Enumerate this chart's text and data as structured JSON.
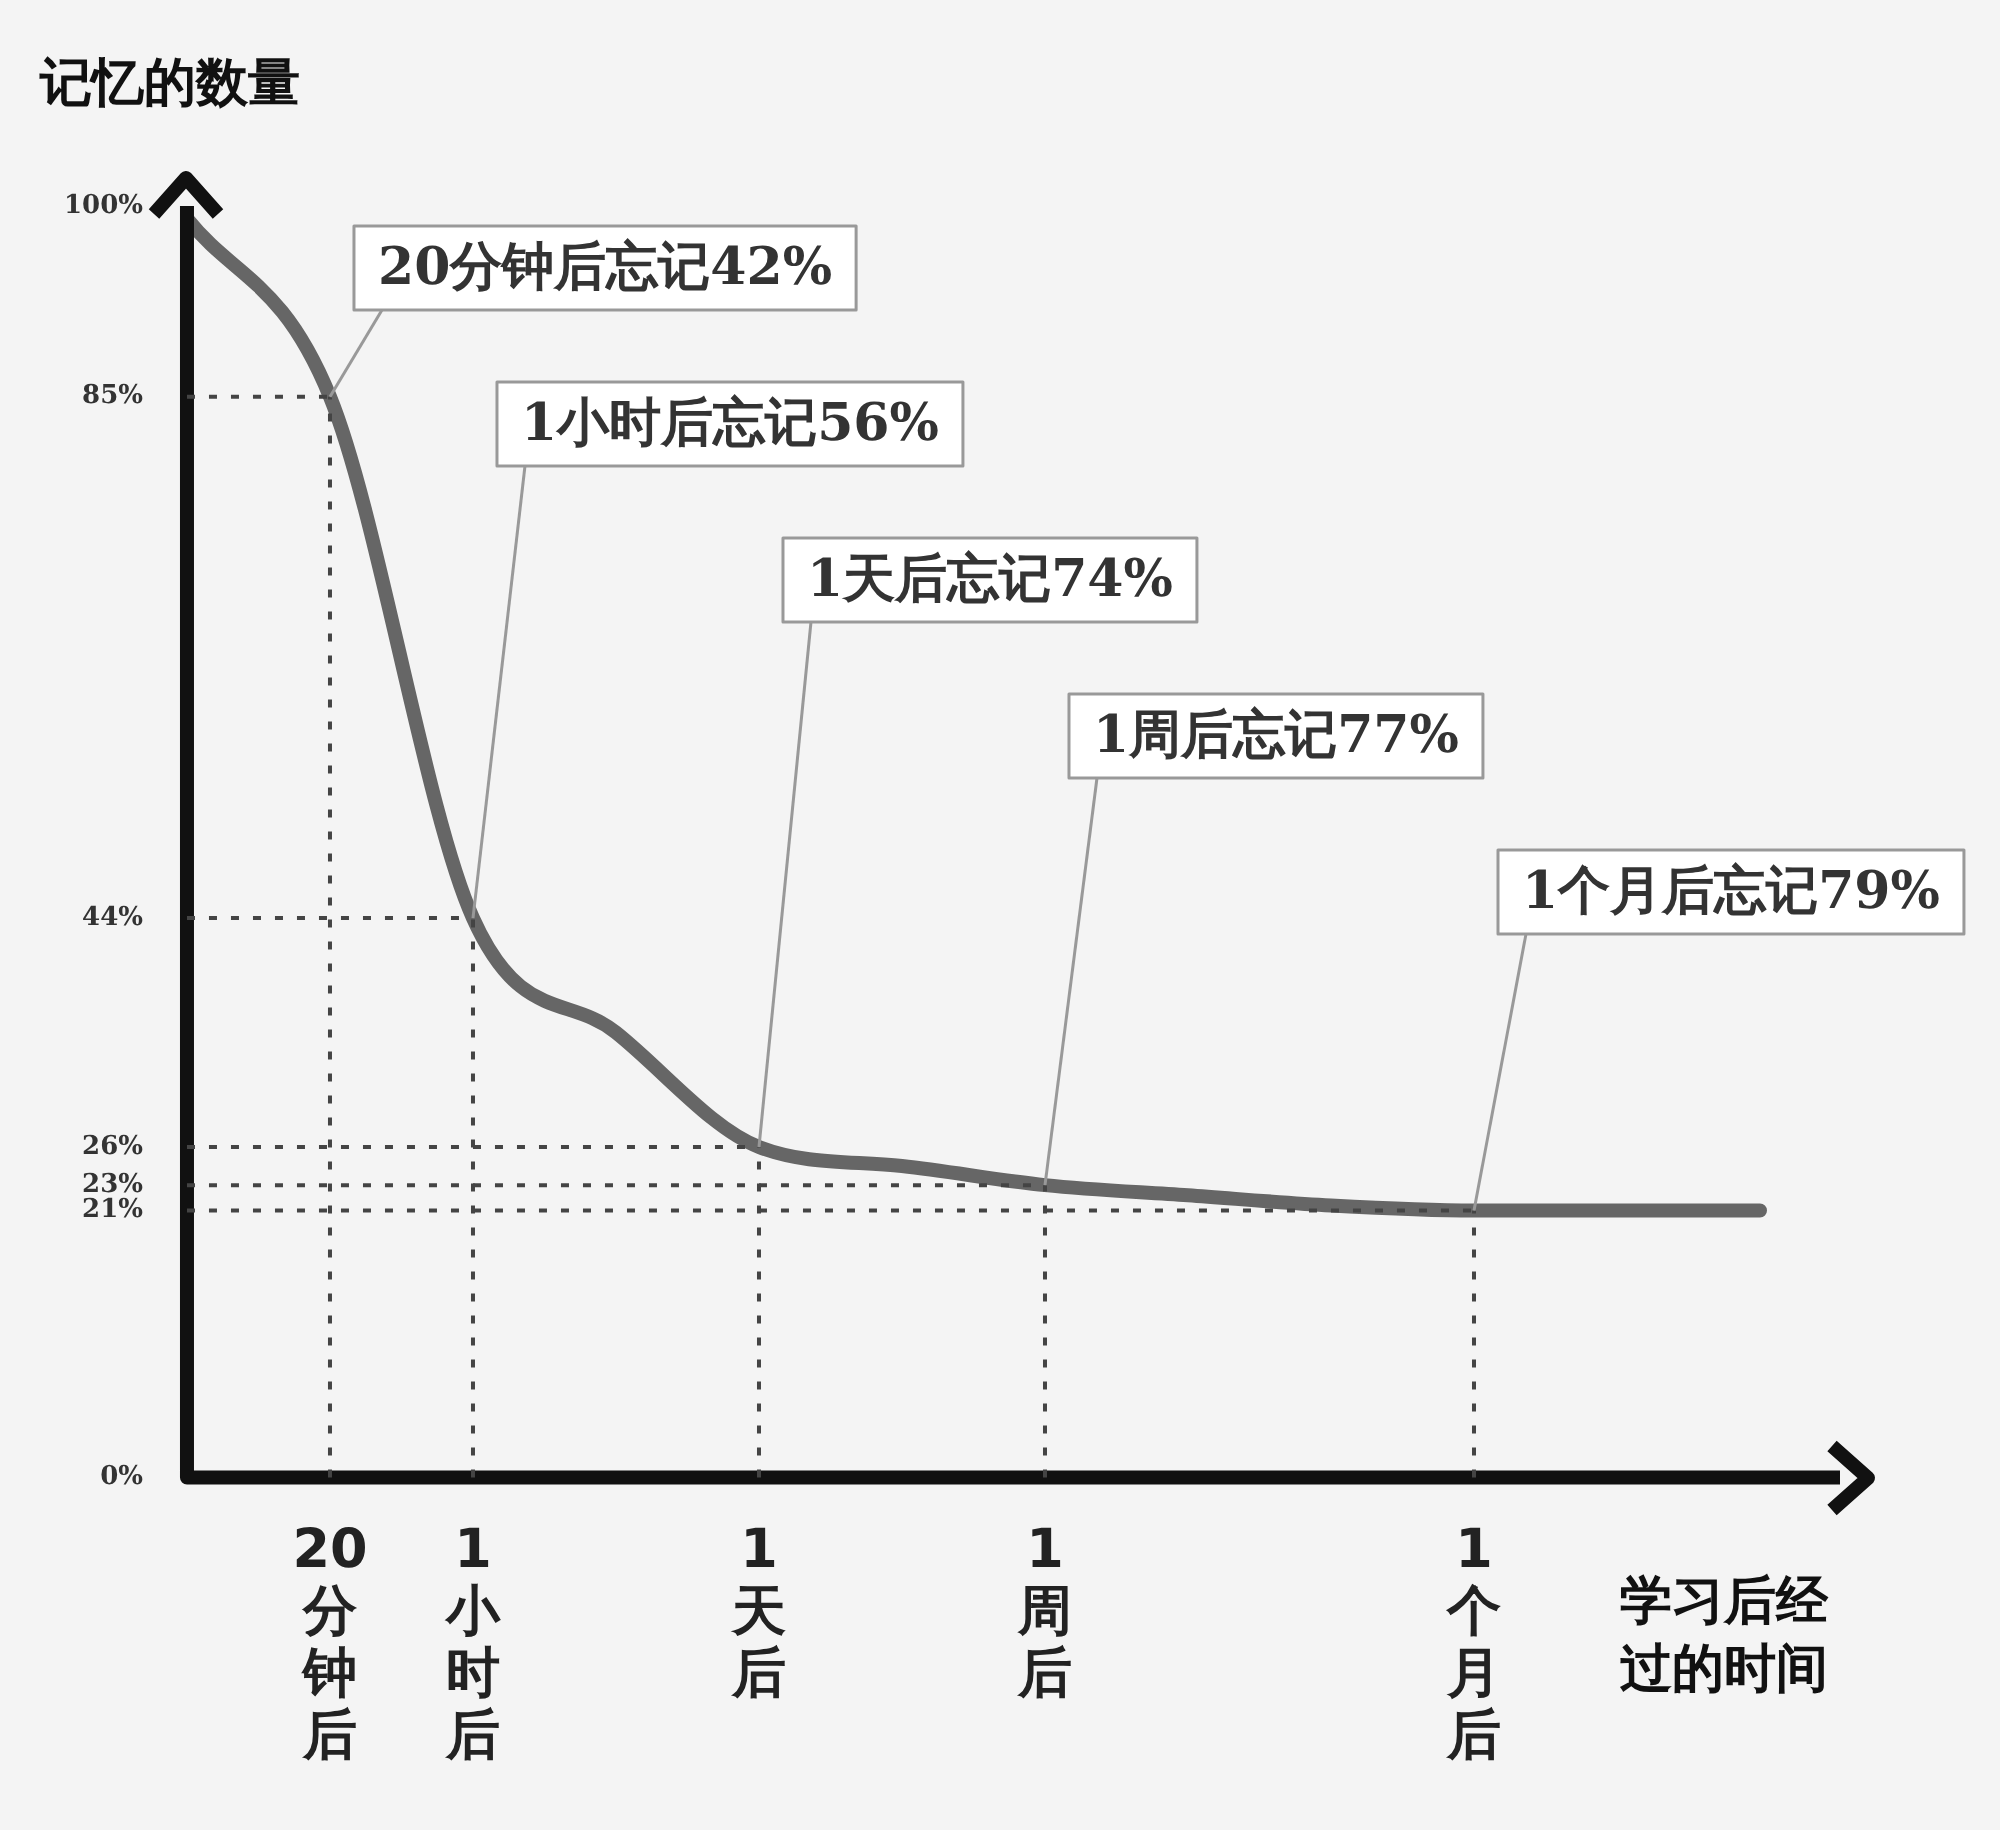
{
  "chart_data": {
    "type": "line",
    "ylabel": "记忆的数量",
    "xlabel": "学习后经过的时间",
    "categories": [
      null,
      "20分钟后",
      "1小时后",
      null,
      "1天后",
      null,
      "1周后",
      null,
      null,
      "1个月后",
      null,
      null
    ],
    "series": [
      {
        "color": "#666666",
        "values": [
          99,
          85,
          44,
          35,
          26,
          24.5,
          23,
          22.2,
          21.4,
          21,
          21,
          21
        ]
      }
    ],
    "ylim": [
      0,
      100
    ],
    "yticks": [
      {
        "value": 0,
        "label": "0%"
      },
      {
        "value": 21,
        "label": "21%"
      },
      {
        "value": 23,
        "label": "23%"
      },
      {
        "value": 26,
        "label": "26%"
      },
      {
        "value": 44,
        "label": "44%"
      },
      {
        "value": 85,
        "label": "85%"
      },
      {
        "value": 100,
        "label": "100%"
      }
    ],
    "annotations": [
      {
        "text": "20分钟后忘记42%",
        "x": "20分钟后",
        "y": 85
      },
      {
        "text": "1小时后忘记56%",
        "x": "1小时后",
        "y": 44
      },
      {
        "text": "1天后忘记74%",
        "x": "1天后",
        "y": 26
      },
      {
        "text": "1周后忘记77%",
        "x": "1周后",
        "y": 23
      },
      {
        "text": "1个月后忘记79%",
        "x": "1个月后",
        "y": 21
      }
    ],
    "ref_lines": [
      {
        "axis": "y",
        "value": 85,
        "line_style": "dotted"
      },
      {
        "axis": "y",
        "value": 44,
        "line_style": "dotted"
      },
      {
        "axis": "y",
        "value": 26,
        "line_style": "dotted"
      },
      {
        "axis": "y",
        "value": 23,
        "line_style": "dotted"
      },
      {
        "axis": "y",
        "value": 21,
        "line_style": "dotted"
      },
      {
        "axis": "x",
        "value": "20分钟后",
        "line_style": "dotted"
      },
      {
        "axis": "x",
        "value": "1小时后",
        "line_style": "dotted"
      },
      {
        "axis": "x",
        "value": "1天后",
        "line_style": "dotted"
      },
      {
        "axis": "x",
        "value": "1周后",
        "line_style": "dotted"
      },
      {
        "axis": "x",
        "value": "1个月后",
        "line_style": "dotted"
      }
    ],
    "marker": "none",
    "line_style": "solid",
    "legend": false,
    "grid": false
  }
}
